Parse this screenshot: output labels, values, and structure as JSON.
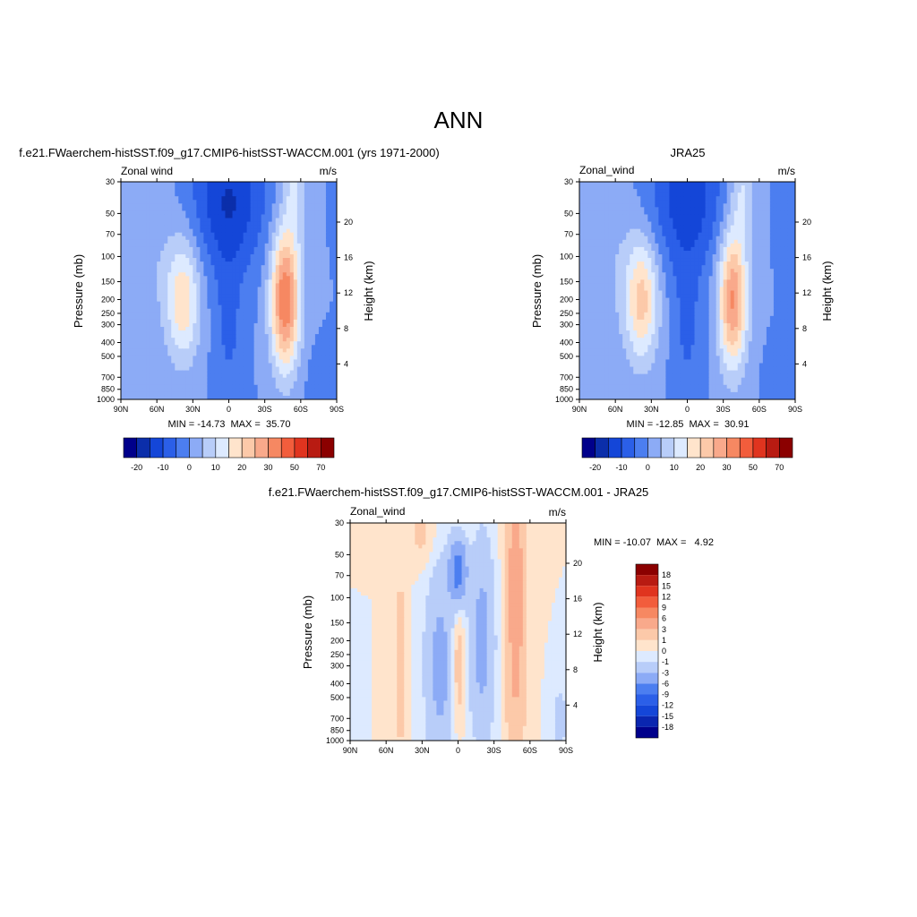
{
  "page_title": "ANN",
  "colors": {
    "wind_levels": [
      "#00008b",
      "#0b2eaa",
      "#1446d8",
      "#2b5fe8",
      "#4c7ef0",
      "#8cabf6",
      "#b8cdf9",
      "#ddeaff",
      "#ffe4cc",
      "#fcc9a9",
      "#f9a98b",
      "#f68862",
      "#f25d3c",
      "#e0341f",
      "#b81b12",
      "#8b0000"
    ],
    "diff_levels": [
      "#00008b",
      "#0a26b0",
      "#1446d8",
      "#2b5fe8",
      "#4c7ef0",
      "#8cabf6",
      "#b8cdf9",
      "#ddeaff",
      "#ffe4cc",
      "#fcc9a9",
      "#f9a98b",
      "#f68862",
      "#f25d3c",
      "#e0341f",
      "#b81b12",
      "#8b0000"
    ]
  },
  "chart_data": [
    {
      "type": "heatmap",
      "subtitle": "f.e21.FWaerchem-histSST.f09_g17.CMIP6-histSST-WACCM.001 (yrs 1971-2000)",
      "left_label": "Zonal wind",
      "units": "m/s",
      "ylabel": "Pressure (mb)",
      "ylabel_right": "Height (km)",
      "x_ticks": [
        "90N",
        "60N",
        "30N",
        "0",
        "30S",
        "60S",
        "90S"
      ],
      "y_ticks": [
        "30",
        "50",
        "70",
        "100",
        "150",
        "200",
        "250",
        "300",
        "400",
        "500",
        "700",
        "850",
        "1000"
      ],
      "height_ticks": [
        "4",
        "8",
        "12",
        "16",
        "20"
      ],
      "stats": "MIN = -14.73  MAX =  35.70",
      "colorbar_labels": [
        "-20",
        "-10",
        "0",
        "10",
        "20",
        "30",
        "50",
        "70"
      ],
      "levels": [
        -20,
        -15,
        -10,
        -5,
        0,
        5,
        10,
        15,
        20,
        25,
        30,
        40,
        50,
        60,
        70
      ],
      "features": {
        "nh_jet_max": 19,
        "nh_jet_lat": 38,
        "nh_jet_p": 200,
        "sh_jet_max": 35.7,
        "sh_jet_lat": -47,
        "sh_jet_p": 200,
        "tropical_min": -14.73
      }
    },
    {
      "type": "heatmap",
      "subtitle": "JRA25",
      "left_label": "Zonal_wind",
      "units": "m/s",
      "ylabel": "Pressure (mb)",
      "ylabel_right": "Height (km)",
      "x_ticks": [
        "90N",
        "60N",
        "30N",
        "0",
        "30S",
        "60S",
        "90S"
      ],
      "y_ticks": [
        "30",
        "50",
        "70",
        "100",
        "150",
        "200",
        "250",
        "300",
        "400",
        "500",
        "700",
        "850",
        "1000"
      ],
      "height_ticks": [
        "4",
        "8",
        "12",
        "16",
        "20"
      ],
      "stats": "MIN = -12.85  MAX =  30.91",
      "colorbar_labels": [
        "-20",
        "-10",
        "0",
        "10",
        "20",
        "30",
        "50",
        "70"
      ],
      "levels": [
        -20,
        -15,
        -10,
        -5,
        0,
        5,
        10,
        15,
        20,
        25,
        30,
        40,
        50,
        60,
        70
      ],
      "features": {
        "nh_jet_max": 22,
        "nh_jet_lat": 38,
        "nh_jet_p": 200,
        "sh_jet_max": 30.91,
        "sh_jet_lat": -38,
        "sh_jet_p": 200,
        "tropical_min": -12.85
      }
    },
    {
      "type": "heatmap",
      "subtitle": "f.e21.FWaerchem-histSST.f09_g17.CMIP6-histSST-WACCM.001 - JRA25",
      "left_label": "Zonal_wind",
      "units": "m/s",
      "ylabel": "Pressure (mb)",
      "ylabel_right": "Height (km)",
      "x_ticks": [
        "90N",
        "60N",
        "30N",
        "0",
        "30S",
        "60S",
        "90S"
      ],
      "y_ticks": [
        "30",
        "50",
        "70",
        "100",
        "150",
        "200",
        "250",
        "300",
        "400",
        "500",
        "700",
        "850",
        "1000"
      ],
      "height_ticks": [
        "4",
        "8",
        "12",
        "16",
        "20"
      ],
      "stats": "MIN = -10.07  MAX =   4.92",
      "colorbar_labels": [
        "18",
        "15",
        "12",
        "9",
        "6",
        "3",
        "1",
        "0",
        "-1",
        "-3",
        "-6",
        "-9",
        "-12",
        "-15",
        "-18"
      ],
      "levels": [
        -18,
        -15,
        -12,
        -9,
        -6,
        -3,
        -1,
        0,
        1,
        3,
        6,
        9,
        12,
        15,
        18
      ],
      "features": {
        "min": -10.07,
        "max": 4.92
      }
    }
  ]
}
